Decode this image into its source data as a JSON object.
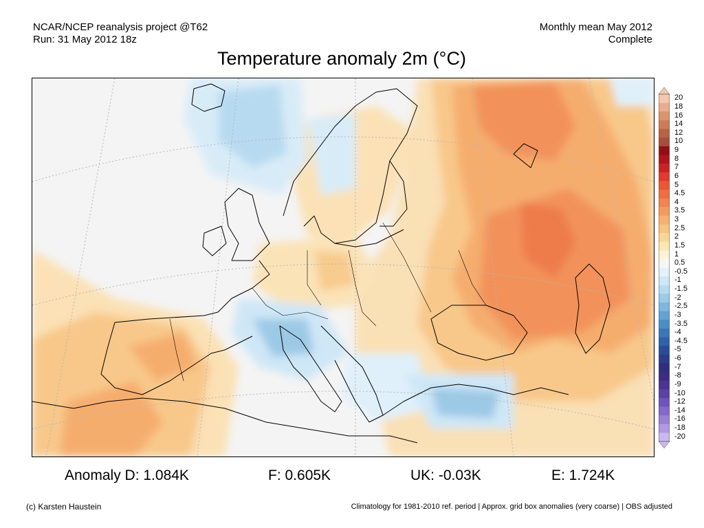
{
  "header": {
    "left_line1": "NCAR/NCEP reanalysis project @T62",
    "left_line2": "Run: 31 May 2012 18z",
    "right_line1": "Monthly mean May 2012",
    "right_line2": "Complete"
  },
  "title": "Temperature anomaly 2m (°C)",
  "legend": {
    "labels": [
      "20",
      "18",
      "16",
      "14",
      "12",
      "10",
      "9",
      "8",
      "7",
      "6",
      "5",
      "4.5",
      "4",
      "3.5",
      "3",
      "2.5",
      "2",
      "1.5",
      "1",
      "0.5",
      "-0.5",
      "-1",
      "-1.5",
      "-2",
      "-2.5",
      "-3",
      "-3.5",
      "-4",
      "-4.5",
      "-5",
      "-6",
      "-7",
      "-8",
      "-9",
      "-10",
      "-12",
      "-14",
      "-16",
      "-18",
      "-20"
    ],
    "colors": [
      "#f3c8ae",
      "#e9ad8c",
      "#dc946f",
      "#ce7c56",
      "#b86246",
      "#a94d3c",
      "#930f15",
      "#b0151b",
      "#cc2224",
      "#e23a2e",
      "#ea5634",
      "#ef6e42",
      "#f28450",
      "#f49a5c",
      "#f6b06f",
      "#f8c47f",
      "#fad694",
      "#fce6b2",
      "#fdf2d6",
      "#f6f6f6",
      "#e3f1fb",
      "#cfe7f7",
      "#b5dbf0",
      "#9cc9e6",
      "#7fb7dc",
      "#63a3d2",
      "#4b8ec6",
      "#3b78b8",
      "#3062aa",
      "#2b4d99",
      "#2c3b8a",
      "#2f2f7f",
      "#3d2b84",
      "#4b3494",
      "#5b41a6",
      "#6e55bb",
      "#8469c9",
      "#9a80d7",
      "#b09ae3",
      "#c8b8ef"
    ]
  },
  "stats": {
    "anomaly_d": "Anomaly D: 1.084K",
    "f": "F: 0.605K",
    "uk": "UK: -0.03K",
    "e": "E: 1.724K"
  },
  "footer": {
    "credit": "(c) Karsten Haustein",
    "note": "Climatology for 1981-2010 ref. period | Approx. grid box anomalies (very coarse) | OBS adjusted"
  }
}
